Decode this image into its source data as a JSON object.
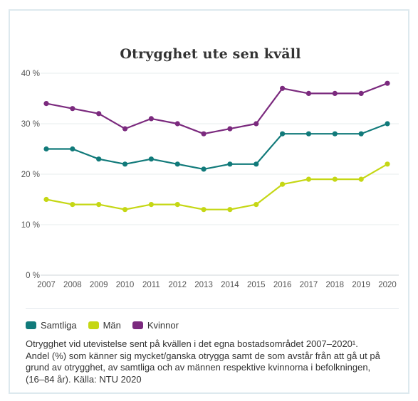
{
  "chart_data": {
    "type": "line",
    "title": "Otrygghet ute sen kväll",
    "x": [
      "2007",
      "2008",
      "2009",
      "2010",
      "2011",
      "2012",
      "2013",
      "2014",
      "2015",
      "2016",
      "2017",
      "2018",
      "2019",
      "2020"
    ],
    "yticks": [
      "0 %",
      "10 %",
      "20 %",
      "30 %",
      "40 %"
    ],
    "ylim": [
      0,
      40
    ],
    "grid": true,
    "legend_position": "bottom-left",
    "series": [
      {
        "name": "Samtliga",
        "color": "#117a7a",
        "values": [
          25,
          25,
          23,
          22,
          23,
          22,
          21,
          22,
          22,
          28,
          28,
          28,
          28,
          30
        ]
      },
      {
        "name": "Män",
        "color": "#c5d714",
        "values": [
          15,
          14,
          14,
          13,
          14,
          14,
          13,
          13,
          14,
          18,
          19,
          19,
          19,
          22
        ]
      },
      {
        "name": "Kvinnor",
        "color": "#7b2a7e",
        "values": [
          34,
          33,
          32,
          29,
          31,
          30,
          28,
          29,
          30,
          37,
          36,
          36,
          36,
          38
        ]
      }
    ]
  },
  "caption": {
    "line1": "Otrygghet vid utevistelse sent på kvällen i det egna bostadsområdet 2007–2020¹.",
    "line2": "Andel (%) som känner sig mycket/ganska otrygga samt de som avstår från att gå ut på",
    "line3": "grund av otrygghet, av samtliga och av männen respektive kvinnorna i befolkningen,",
    "line4": "(16–84 år). Källa: NTU 2020"
  }
}
